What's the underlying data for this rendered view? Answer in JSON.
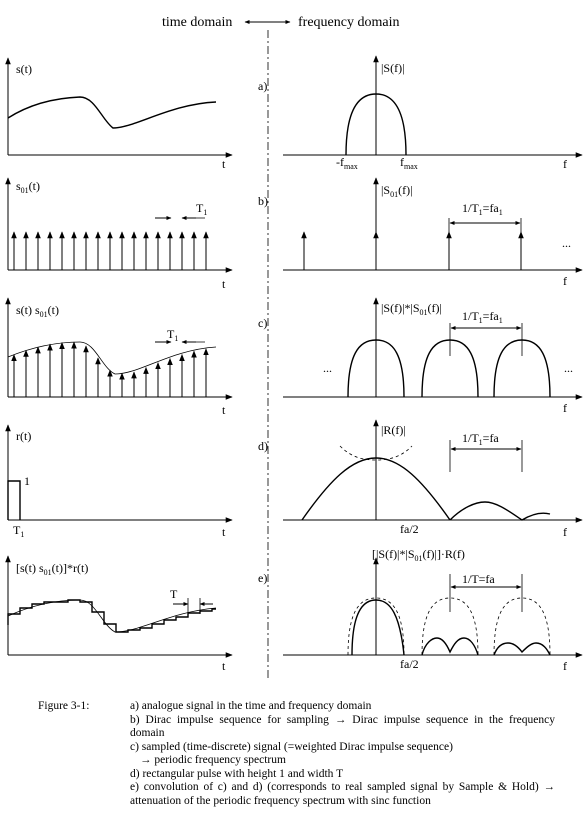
{
  "header": {
    "time_domain": "time domain",
    "frequency_domain": "frequency domain"
  },
  "rows": [
    {
      "id": "a",
      "marker": "a)",
      "time_label": "s(t)",
      "freq_label": "|S(f)|",
      "t_axis": "t",
      "f_axis": "f",
      "neg_fmax": "-f",
      "fmax": "f",
      "fmax_sub": "max"
    },
    {
      "id": "b",
      "marker": "b)",
      "time_label": "s",
      "time_label_sub": "01",
      "time_label_tail": "(t)",
      "freq_label": "|S",
      "freq_label_sub": "01",
      "freq_label_tail": "(f)|",
      "period_label": "T",
      "period_sub": "1",
      "spacing_label": "1/T",
      "spacing_sub1": "1",
      "spacing_eq": "=fa",
      "spacing_sub2": "1",
      "ellipsis": "...",
      "t_axis": "t",
      "f_axis": "f"
    },
    {
      "id": "c",
      "marker": "c)",
      "time_label": "s(t) s",
      "time_label_sub": "01",
      "time_label_tail": "(t)",
      "freq_label": "|S(f)|*|S",
      "freq_label_sub": "01",
      "freq_label_tail": "(f)|",
      "period_label": "T",
      "period_sub": "1",
      "spacing_label": "1/T",
      "spacing_sub1": "1",
      "spacing_eq": "=fa",
      "spacing_sub2": "1",
      "ellipsis": "...",
      "t_axis": "t",
      "f_axis": "f"
    },
    {
      "id": "d",
      "marker": "d)",
      "time_label": "r(t)",
      "freq_label": "|R(f)|",
      "height_label": "1",
      "width_label": "T",
      "width_sub": "1",
      "spacing_label": "1/T",
      "spacing_sub1": "1",
      "spacing_eq": "=fa",
      "half_label": "fa/2",
      "t_axis": "t",
      "f_axis": "f"
    },
    {
      "id": "e",
      "marker": "e)",
      "time_label": "[s(t) s",
      "time_label_sub": "01",
      "time_label_tail": "(t)]*r(t)",
      "freq_label": "[|S(f)|*|S",
      "freq_label_sub": "01",
      "freq_label_tail": "(f)|]·R(f)",
      "period_label": "T",
      "spacing_label": "1/T=fa",
      "half_label": "fa/2",
      "t_axis": "t",
      "f_axis": "f"
    }
  ],
  "caption": {
    "title": "Figure 3-1:",
    "items": [
      "a) analogue signal in the time and frequency domain",
      "b) Dirac impulse sequence for sampling → Dirac impulse sequence in the frequency domain",
      "c) sampled (time-discrete) signal (=weighted Dirac impulse sequence)",
      "→ periodic frequency spectrum",
      "d) rectangular pulse with height 1 and width T",
      "e) convolution of c) and d) (corresponds to real sampled signal by Sample & Hold)  → attenuation of the periodic frequency spectrum with sinc function"
    ]
  }
}
